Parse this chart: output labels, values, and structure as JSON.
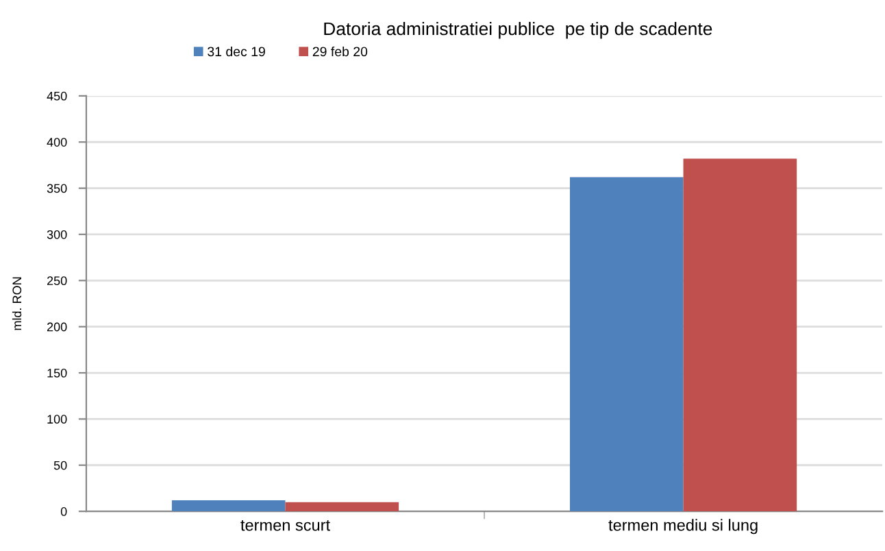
{
  "chart_data": {
    "type": "bar",
    "title": "Datoria administratiei publice  pe tip de scadente",
    "ylabel": "mld. RON",
    "categories": [
      "termen scurt",
      "termen mediu si lung"
    ],
    "series": [
      {
        "name": "31 dec 19",
        "color": "#4f81bd",
        "values": [
          12,
          362
        ]
      },
      {
        "name": "29 feb 20",
        "color": "#c0504d",
        "values": [
          10,
          382
        ]
      }
    ],
    "ylim": [
      0,
      450
    ],
    "yticks": [
      0,
      50,
      100,
      150,
      200,
      250,
      300,
      350,
      400,
      450
    ],
    "grid": "y",
    "legend": "top left"
  }
}
